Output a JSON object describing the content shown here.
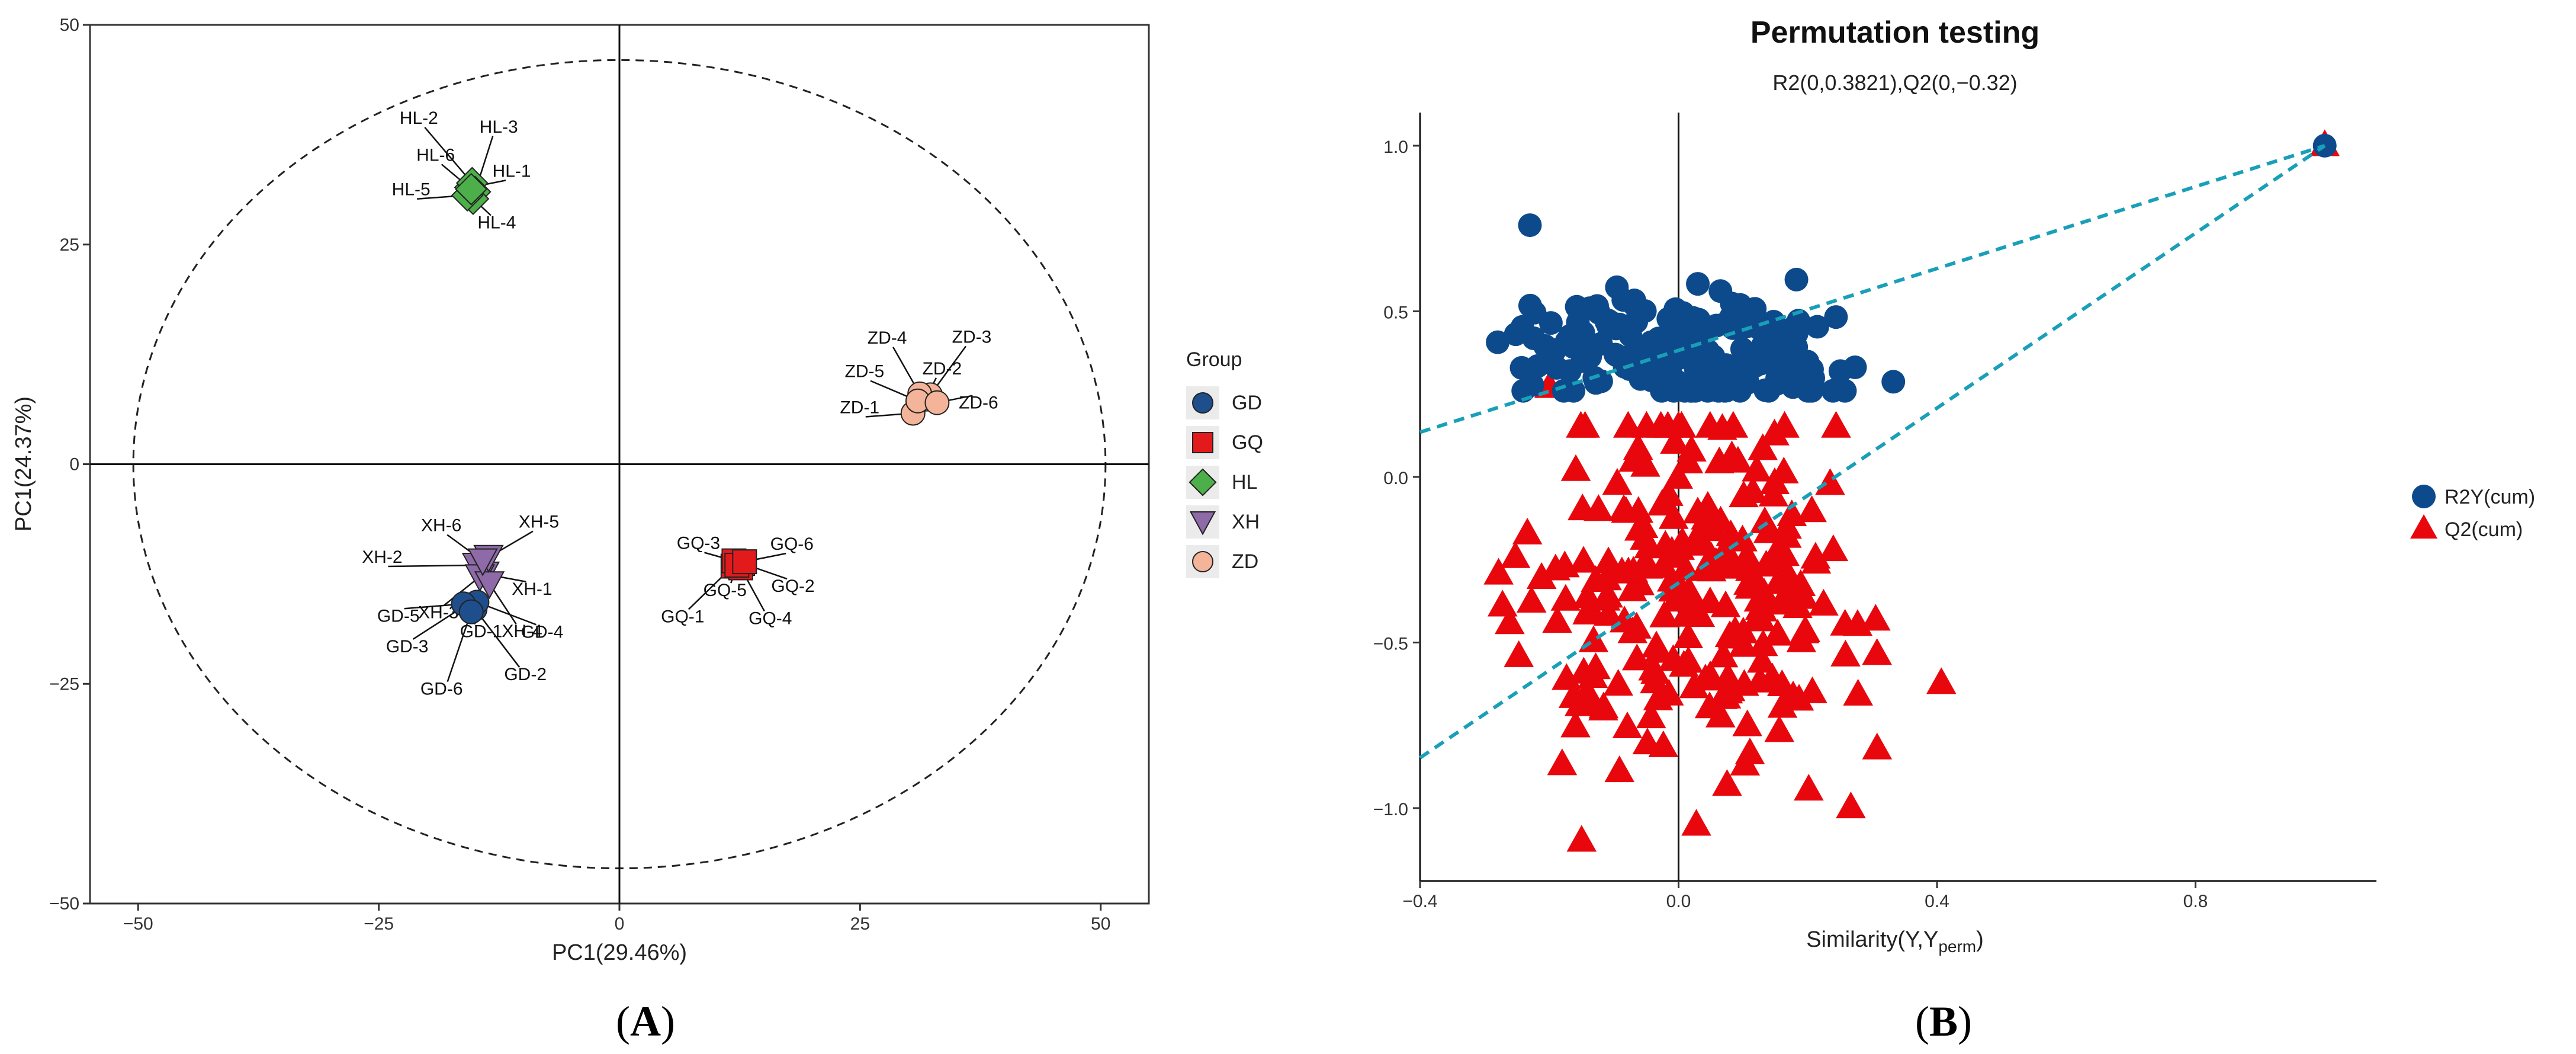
{
  "chart_data": [
    {
      "panel": "A",
      "type": "scatter",
      "panel_label": "A",
      "xlabel": "PC1(29.46%)",
      "ylabel": "PC1(24.37%)",
      "xlim": [
        -55,
        55
      ],
      "ylim": [
        -50,
        50
      ],
      "xticks": [
        -50,
        -25,
        0,
        25,
        50
      ],
      "yticks": [
        50,
        25,
        0,
        -25,
        -50
      ],
      "xtick_labels": [
        "−50",
        "−25",
        "0",
        "25",
        "50"
      ],
      "ytick_labels": [
        "50",
        "25",
        "0",
        "−25",
        "−50"
      ],
      "ellipse": {
        "cx": 0,
        "cy": 0,
        "rx": 50.5,
        "ry": 46
      },
      "legend_title": "Group",
      "groups": [
        {
          "name": "GD",
          "marker": "circle",
          "color": "#1f4e8c"
        },
        {
          "name": "GQ",
          "marker": "square",
          "color": "#e31a1c"
        },
        {
          "name": "HL",
          "marker": "diamond",
          "color": "#4daf4a"
        },
        {
          "name": "XH",
          "marker": "triangle-down",
          "color": "#8e6aa8"
        },
        {
          "name": "ZD",
          "marker": "circle",
          "color": "#f4b49a"
        }
      ],
      "points": [
        {
          "label": "HL-1",
          "group": "HL",
          "x": -15.5,
          "y": 31.5
        },
        {
          "label": "HL-2",
          "group": "HL",
          "x": -15.3,
          "y": 32.0
        },
        {
          "label": "HL-3",
          "group": "HL",
          "x": -15.0,
          "y": 31.0
        },
        {
          "label": "HL-4",
          "group": "HL",
          "x": -15.2,
          "y": 30.2
        },
        {
          "label": "HL-5",
          "group": "HL",
          "x": -15.8,
          "y": 30.6
        },
        {
          "label": "HL-6",
          "group": "HL",
          "x": -15.4,
          "y": 31.3
        },
        {
          "label": "ZD-1",
          "group": "ZD",
          "x": 30.5,
          "y": 5.8
        },
        {
          "label": "ZD-2",
          "group": "ZD",
          "x": 31.8,
          "y": 7.4
        },
        {
          "label": "ZD-3",
          "group": "ZD",
          "x": 32.3,
          "y": 7.9
        },
        {
          "label": "ZD-4",
          "group": "ZD",
          "x": 31.2,
          "y": 8.0
        },
        {
          "label": "ZD-5",
          "group": "ZD",
          "x": 31.0,
          "y": 7.2
        },
        {
          "label": "ZD-6",
          "group": "ZD",
          "x": 33.0,
          "y": 7.0
        },
        {
          "label": "GQ-1",
          "group": "GQ",
          "x": 11.8,
          "y": -11.6
        },
        {
          "label": "GQ-2",
          "group": "GQ",
          "x": 12.8,
          "y": -11.3
        },
        {
          "label": "GQ-3",
          "group": "GQ",
          "x": 11.9,
          "y": -11.0
        },
        {
          "label": "GQ-4",
          "group": "GQ",
          "x": 12.6,
          "y": -11.8
        },
        {
          "label": "GQ-5",
          "group": "GQ",
          "x": 12.2,
          "y": -11.5
        },
        {
          "label": "GQ-6",
          "group": "GQ",
          "x": 13.0,
          "y": -11.1
        },
        {
          "label": "XH-1",
          "group": "XH",
          "x": -14.0,
          "y": -12.5
        },
        {
          "label": "XH-2",
          "group": "XH",
          "x": -14.8,
          "y": -11.5
        },
        {
          "label": "XH-3",
          "group": "XH",
          "x": -14.5,
          "y": -12.8
        },
        {
          "label": "XH-4",
          "group": "XH",
          "x": -13.5,
          "y": -13.6
        },
        {
          "label": "XH-5",
          "group": "XH",
          "x": -13.6,
          "y": -10.6
        },
        {
          "label": "XH-6",
          "group": "XH",
          "x": -14.2,
          "y": -11.0
        },
        {
          "label": "GD-1",
          "group": "GD",
          "x": -15.6,
          "y": -16.2
        },
        {
          "label": "GD-2",
          "group": "GD",
          "x": -15.0,
          "y": -16.5
        },
        {
          "label": "GD-3",
          "group": "GD",
          "x": -15.9,
          "y": -16.0
        },
        {
          "label": "GD-4",
          "group": "GD",
          "x": -14.8,
          "y": -15.7
        },
        {
          "label": "GD-5",
          "group": "GD",
          "x": -16.2,
          "y": -15.9
        },
        {
          "label": "GD-6",
          "group": "GD",
          "x": -15.4,
          "y": -16.8
        }
      ]
    },
    {
      "panel": "B",
      "type": "scatter",
      "panel_label": "B",
      "title": "Permutation testing",
      "subtitle": "R2(0,0.3821),Q2(0,−0.32)",
      "xlabel_main": "Similarity(Y,Y",
      "xlabel_sub": "perm",
      "xlabel_end": ")",
      "xlim": [
        -0.4,
        1.08
      ],
      "ylim": [
        -1.22,
        1.1
      ],
      "xticks": [
        -0.4,
        0.0,
        0.4,
        0.8
      ],
      "yticks": [
        1.0,
        0.5,
        0.0,
        -0.5,
        -1.0
      ],
      "xtick_labels": [
        "−0.4",
        "0.0",
        "0.4",
        "0.8"
      ],
      "ytick_labels": [
        "1.0",
        "0.5",
        "0.0",
        "−0.5",
        "−1.0"
      ],
      "series": [
        {
          "name": "R2Y(cum)",
          "marker": "circle",
          "color": "#0d4a8b"
        },
        {
          "name": "Q2(cum)",
          "marker": "triangle",
          "color": "#e8070d"
        }
      ],
      "regression_lines": [
        {
          "name": "R2Y",
          "intercept": 0.3821,
          "slope": 0.6179,
          "color": "#1a9fb8"
        },
        {
          "name": "Q2",
          "intercept": -0.32,
          "slope": 1.32,
          "color": "#1a9fb8"
        }
      ]
    }
  ]
}
